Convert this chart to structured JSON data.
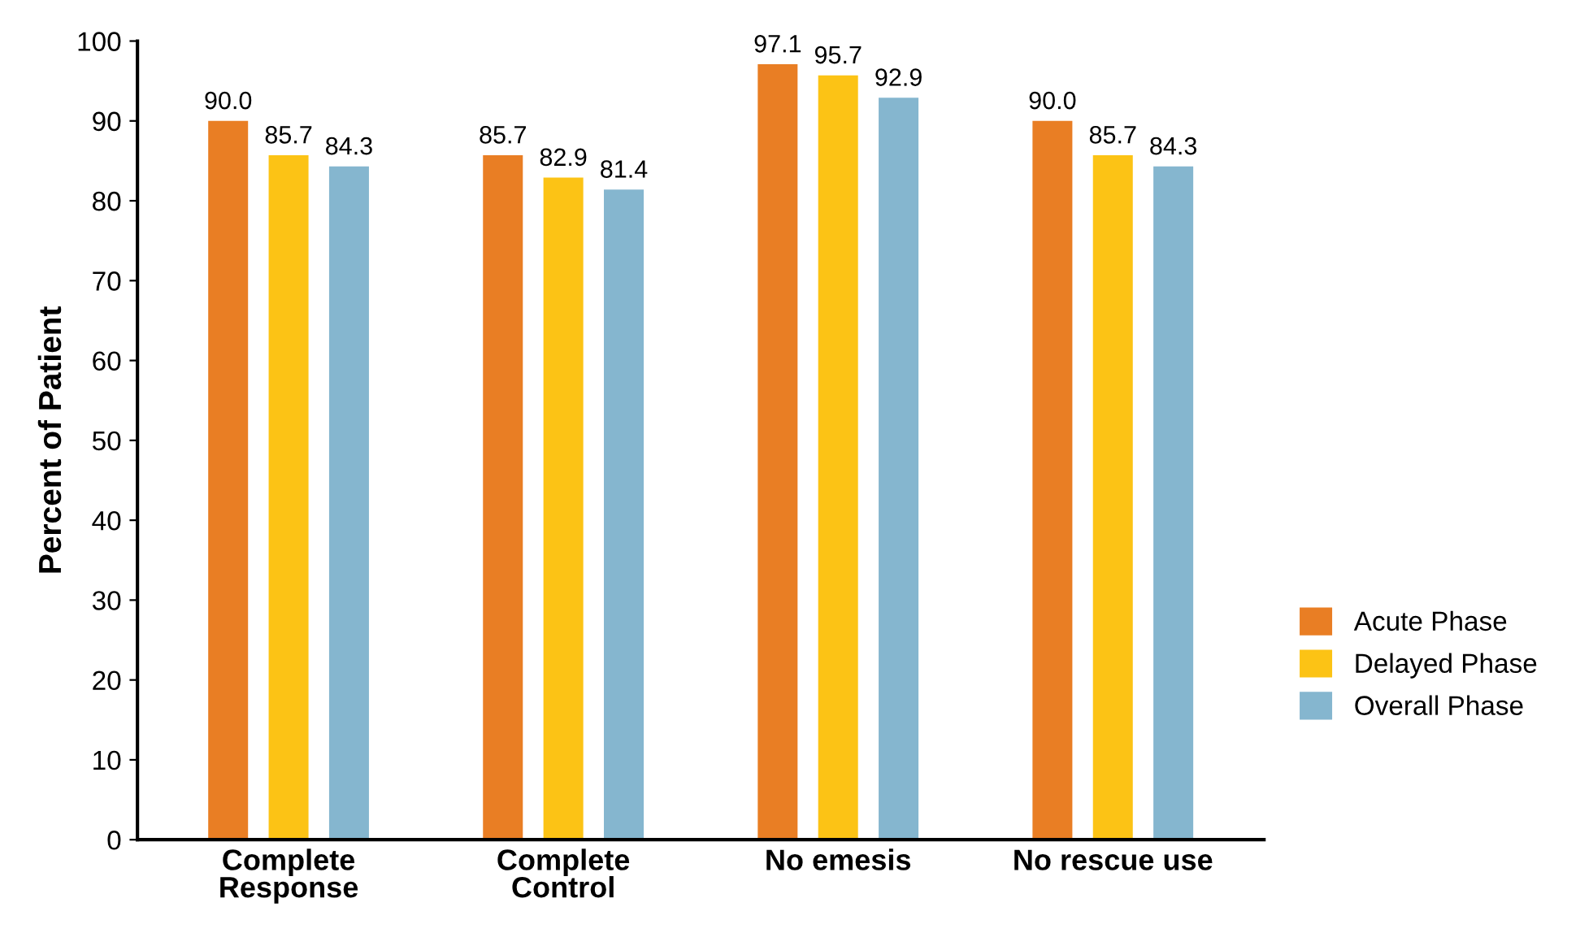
{
  "chart_data": {
    "type": "bar",
    "ylabel": "Percent of Patient",
    "categories": [
      "Complete\nResponse",
      "Complete\nControl",
      "No emesis",
      "No rescue use"
    ],
    "series": [
      {
        "name": "Acute Phase",
        "color": "#e97e24",
        "values": [
          90.0,
          85.7,
          97.1,
          90.0
        ],
        "value_labels": [
          "90.0",
          "85.7",
          "97.1",
          "90.0"
        ]
      },
      {
        "name": "Delayed Phase",
        "color": "#fcc315",
        "values": [
          85.7,
          82.9,
          95.7,
          85.7
        ],
        "value_labels": [
          "85.7",
          "82.9",
          "95.7",
          "85.7"
        ]
      },
      {
        "name": "Overall Phase",
        "color": "#85b6cf",
        "values": [
          84.3,
          81.4,
          92.9,
          84.3
        ],
        "value_labels": [
          "84.3",
          "81.4",
          "92.9",
          "84.3"
        ]
      }
    ],
    "ylim": [
      0,
      100
    ],
    "yticks": [
      0,
      10,
      20,
      30,
      40,
      50,
      60,
      70,
      80,
      90,
      100
    ],
    "grid": false,
    "legend": "right"
  }
}
